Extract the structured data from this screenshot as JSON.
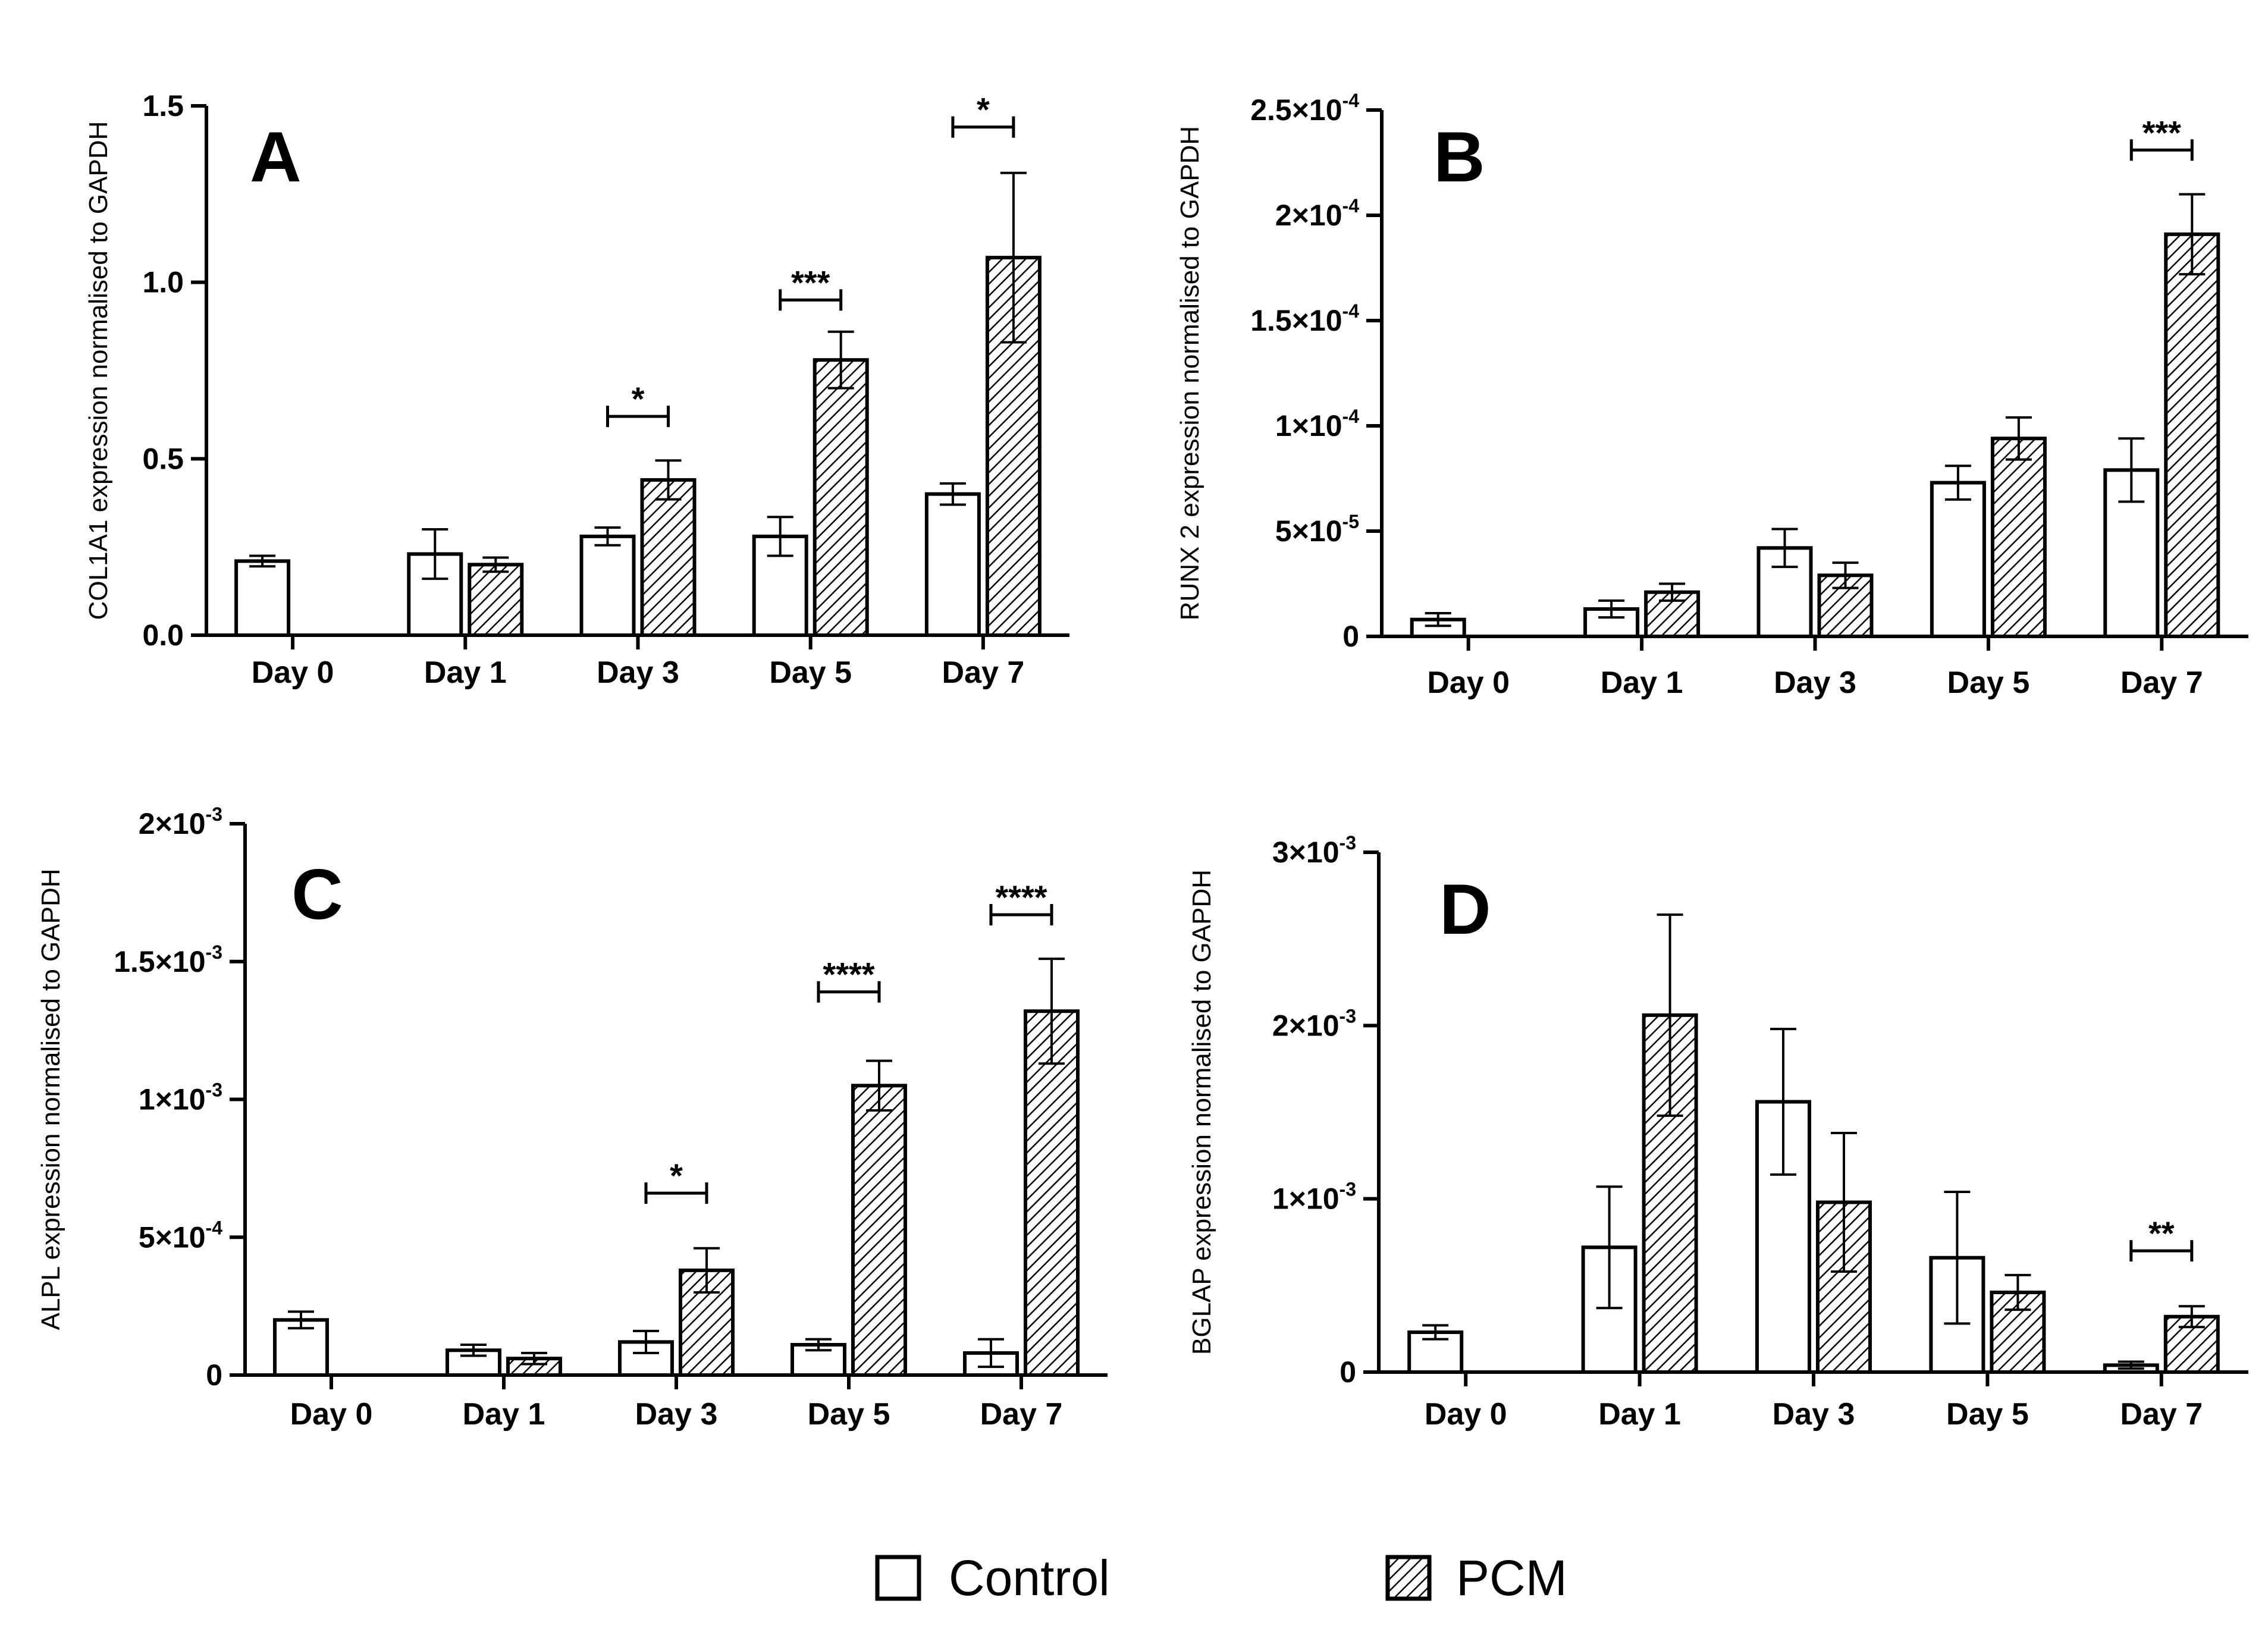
{
  "legend": {
    "control_label": "Control",
    "pcm_label": "PCM"
  },
  "colors": {
    "bar_stroke": "#000000",
    "control_fill": "#ffffff",
    "hatch": "#000000"
  },
  "chart_data": [
    {
      "id": "A",
      "type": "bar",
      "panel_label": "A",
      "ylabel": "COL1A1 expression normalised to GAPDH",
      "categories": [
        "Day 0",
        "Day 1",
        "Day 3",
        "Day 5",
        "Day 7"
      ],
      "ylim": [
        0,
        1.5
      ],
      "yticks": [
        {
          "v": 0,
          "label": "0.0"
        },
        {
          "v": 0.5,
          "label": "0.5"
        },
        {
          "v": 1.0,
          "label": "1.0"
        },
        {
          "v": 1.5,
          "label": "1.5"
        }
      ],
      "series": [
        {
          "name": "Control",
          "values": [
            0.21,
            0.23,
            0.28,
            0.28,
            0.4
          ],
          "errors": [
            0.015,
            0.07,
            0.025,
            0.055,
            0.03
          ]
        },
        {
          "name": "PCM",
          "values": [
            null,
            0.2,
            0.44,
            0.78,
            1.07
          ],
          "errors": [
            null,
            0.02,
            0.055,
            0.08,
            0.24
          ]
        }
      ],
      "significance": [
        {
          "category": 2,
          "label": "*",
          "y": 0.62
        },
        {
          "category": 3,
          "label": "***",
          "y": 0.95
        },
        {
          "category": 4,
          "label": "*",
          "y": 1.44
        }
      ]
    },
    {
      "id": "B",
      "type": "bar",
      "panel_label": "B",
      "ylabel": "RUNX 2 expression normalised to GAPDH",
      "categories": [
        "Day 0",
        "Day 1",
        "Day 3",
        "Day 5",
        "Day 7"
      ],
      "ylim": [
        0,
        0.00025
      ],
      "yticks": [
        {
          "v": 0,
          "label": "0"
        },
        {
          "v": 5e-05,
          "label": "5×10",
          "exp": "-5"
        },
        {
          "v": 0.0001,
          "label": "1×10",
          "exp": "-4"
        },
        {
          "v": 0.00015,
          "label": "1.5×10",
          "exp": "-4"
        },
        {
          "v": 0.0002,
          "label": "2×10",
          "exp": "-4"
        },
        {
          "v": 0.00025,
          "label": "2.5×10",
          "exp": "-4"
        }
      ],
      "series": [
        {
          "name": "Control",
          "values": [
            8e-06,
            1.3e-05,
            4.2e-05,
            7.3e-05,
            7.9e-05
          ],
          "errors": [
            3e-06,
            4e-06,
            9e-06,
            8e-06,
            1.5e-05
          ]
        },
        {
          "name": "PCM",
          "values": [
            null,
            2.1e-05,
            2.9e-05,
            9.4e-05,
            0.000191
          ],
          "errors": [
            null,
            4e-06,
            6e-06,
            1e-05,
            1.9e-05
          ]
        }
      ],
      "significance": [
        {
          "category": 4,
          "label": "***",
          "y": 0.000231
        }
      ]
    },
    {
      "id": "C",
      "type": "bar",
      "panel_label": "C",
      "ylabel": "ALPL  expression normalised to GAPDH",
      "categories": [
        "Day 0",
        "Day 1",
        "Day 3",
        "Day 5",
        "Day 7"
      ],
      "ylim": [
        0,
        0.002
      ],
      "yticks": [
        {
          "v": 0,
          "label": "0"
        },
        {
          "v": 0.0005,
          "label": "5×10",
          "exp": "-4"
        },
        {
          "v": 0.001,
          "label": "1×10",
          "exp": "-3"
        },
        {
          "v": 0.0015,
          "label": "1.5×10",
          "exp": "-3"
        },
        {
          "v": 0.002,
          "label": "2×10",
          "exp": "-3"
        }
      ],
      "series": [
        {
          "name": "Control",
          "values": [
            0.0002,
            9e-05,
            0.00012,
            0.00011,
            8e-05
          ],
          "errors": [
            3e-05,
            2e-05,
            4e-05,
            2e-05,
            5e-05
          ]
        },
        {
          "name": "PCM",
          "values": [
            null,
            6e-05,
            0.00038,
            0.00105,
            0.00132
          ],
          "errors": [
            null,
            2e-05,
            8e-05,
            9e-05,
            0.00019
          ]
        }
      ],
      "significance": [
        {
          "category": 2,
          "label": "*",
          "y": 0.00066
        },
        {
          "category": 3,
          "label": "****",
          "y": 0.00139
        },
        {
          "category": 4,
          "label": "****",
          "y": 0.00167
        }
      ]
    },
    {
      "id": "D",
      "type": "bar",
      "panel_label": "D",
      "ylabel": "BGLAP expression normalised to GAPDH",
      "categories": [
        "Day 0",
        "Day 1",
        "Day 3",
        "Day 5",
        "Day 7"
      ],
      "ylim": [
        0,
        0.003
      ],
      "yticks": [
        {
          "v": 0,
          "label": "0"
        },
        {
          "v": 0.001,
          "label": "1×10",
          "exp": "-3"
        },
        {
          "v": 0.002,
          "label": "2×10",
          "exp": "-3"
        },
        {
          "v": 0.003,
          "label": "3×10",
          "exp": "-3"
        }
      ],
      "series": [
        {
          "name": "Control",
          "values": [
            0.00023,
            0.00072,
            0.00156,
            0.00066,
            4e-05
          ],
          "errors": [
            4e-05,
            0.00035,
            0.00042,
            0.00038,
            2e-05
          ]
        },
        {
          "name": "PCM",
          "values": [
            null,
            0.00206,
            0.00098,
            0.00046,
            0.00032
          ],
          "errors": [
            null,
            0.00058,
            0.0004,
            0.0001,
            6e-05
          ]
        }
      ],
      "significance": [
        {
          "category": 4,
          "label": "**",
          "y": 0.0007
        }
      ]
    }
  ]
}
